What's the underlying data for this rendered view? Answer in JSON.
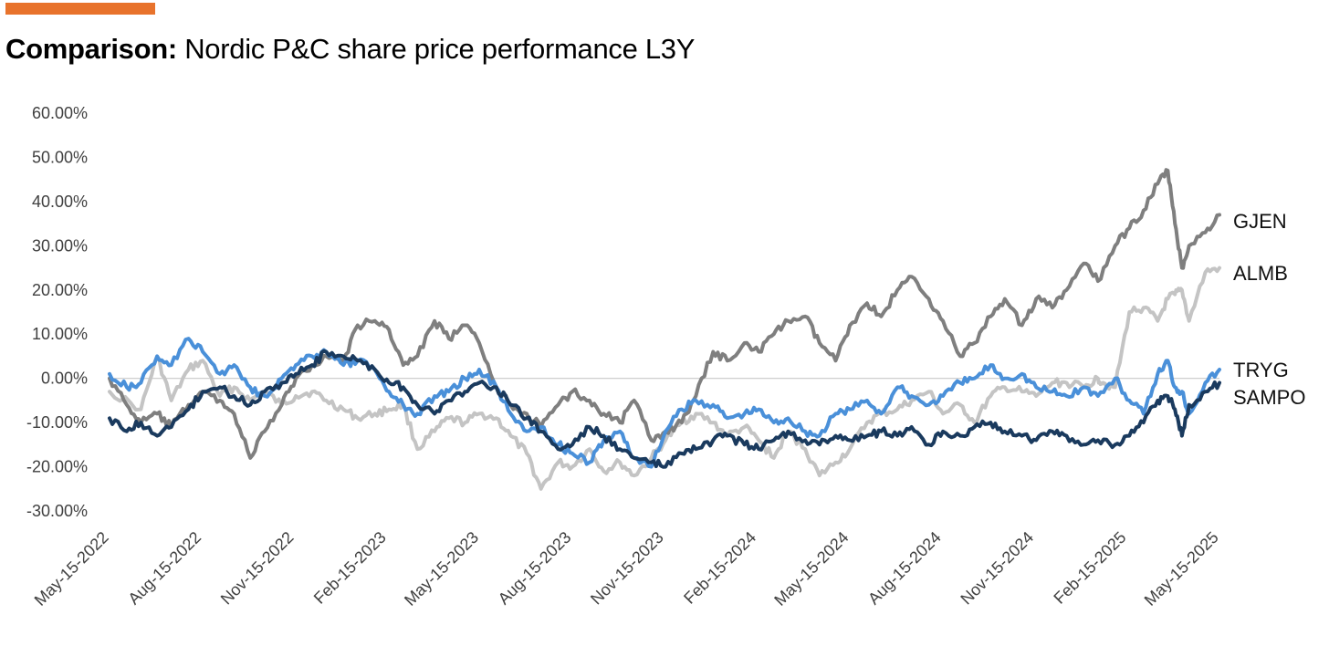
{
  "header": {
    "accent_color": "#E8732C",
    "title_bold": "Comparison:",
    "title_rest": " Nordic P&C share price performance L3Y"
  },
  "chart_data": {
    "type": "line",
    "title": "Comparison: Nordic P&C share price performance L3Y",
    "xlabel": "",
    "ylabel": "",
    "x_start": "2022-05-15",
    "x_end": "2025-05-15",
    "x_ticks": [
      "May-15-2022",
      "Aug-15-2022",
      "Nov-15-2022",
      "Feb-15-2023",
      "May-15-2023",
      "Aug-15-2023",
      "Nov-15-2023",
      "Feb-15-2024",
      "May-15-2024",
      "Aug-15-2024",
      "Nov-15-2024",
      "Feb-15-2025",
      "May-15-2025"
    ],
    "y_ticks": [
      "-30.00%",
      "-20.00%",
      "-10.00%",
      "0.00%",
      "10.00%",
      "20.00%",
      "30.00%",
      "40.00%",
      "50.00%",
      "60.00%"
    ],
    "ylim": [
      -30,
      60
    ],
    "y_unit": "%",
    "grid": false,
    "legend": "labels at line ends",
    "series": [
      {
        "name": "ALMB",
        "color": "#C4C4C4",
        "x": [
          "2022-05-15",
          "2022-06-15",
          "2022-07-01",
          "2022-07-15",
          "2022-08-01",
          "2022-08-15",
          "2022-09-01",
          "2022-09-15",
          "2022-10-01",
          "2022-10-15",
          "2022-11-01",
          "2022-11-15",
          "2022-12-01",
          "2022-12-15",
          "2023-01-01",
          "2023-01-15",
          "2023-02-01",
          "2023-02-15",
          "2023-03-01",
          "2023-03-15",
          "2023-04-01",
          "2023-04-15",
          "2023-05-01",
          "2023-05-15",
          "2023-06-01",
          "2023-06-15",
          "2023-07-01",
          "2023-07-15",
          "2023-08-01",
          "2023-08-15",
          "2023-09-01",
          "2023-09-15",
          "2023-10-01",
          "2023-10-15",
          "2023-11-01",
          "2023-11-15",
          "2023-12-01",
          "2023-12-15",
          "2024-01-01",
          "2024-01-15",
          "2024-02-01",
          "2024-02-15",
          "2024-03-01",
          "2024-03-15",
          "2024-04-01",
          "2024-04-15",
          "2024-05-01",
          "2024-05-15",
          "2024-06-01",
          "2024-06-15",
          "2024-07-01",
          "2024-07-15",
          "2024-08-01",
          "2024-08-15",
          "2024-09-01",
          "2024-09-15",
          "2024-10-01",
          "2024-10-15",
          "2024-11-01",
          "2024-11-15",
          "2024-12-01",
          "2024-12-15",
          "2025-01-01",
          "2025-01-15",
          "2025-01-20",
          "2025-02-01",
          "2025-02-15",
          "2025-03-01",
          "2025-03-15",
          "2025-03-25",
          "2025-04-01",
          "2025-04-08",
          "2025-04-15",
          "2025-05-01",
          "2025-05-15"
        ],
        "values": [
          -3,
          -7,
          5,
          -5,
          2,
          4,
          -4,
          -2,
          -5,
          -3,
          -6,
          -4,
          -3,
          -5,
          -7,
          -9,
          -8,
          -7,
          -6,
          -16,
          -12,
          -9,
          -10,
          -8,
          -9,
          -13,
          -17,
          -25,
          -19,
          -20,
          -16,
          -21,
          -19,
          -22,
          -18,
          -14,
          -10,
          -8,
          -10,
          -13,
          -11,
          -14,
          -18,
          -12,
          -16,
          -22,
          -19,
          -16,
          -10,
          -8,
          -7,
          -5,
          -3,
          -8,
          -6,
          -10,
          -4,
          -2,
          -3,
          -4,
          -1,
          -1,
          -2,
          0,
          -1,
          -2,
          15,
          16,
          13,
          18,
          19,
          20,
          13,
          24,
          25
        ]
      },
      {
        "name": "GJEN",
        "color": "#7F7F7F",
        "x": [
          "2022-05-15",
          "2022-06-01",
          "2022-06-15",
          "2022-07-01",
          "2022-07-15",
          "2022-08-01",
          "2022-08-15",
          "2022-09-01",
          "2022-09-15",
          "2022-10-01",
          "2022-10-15",
          "2022-11-01",
          "2022-11-15",
          "2022-12-01",
          "2022-12-15",
          "2023-01-01",
          "2023-01-15",
          "2023-02-01",
          "2023-02-15",
          "2023-03-01",
          "2023-03-15",
          "2023-04-01",
          "2023-04-15",
          "2023-05-01",
          "2023-05-15",
          "2023-06-01",
          "2023-06-15",
          "2023-07-01",
          "2023-07-15",
          "2023-08-01",
          "2023-08-15",
          "2023-09-01",
          "2023-09-15",
          "2023-10-01",
          "2023-10-15",
          "2023-11-01",
          "2023-11-15",
          "2023-12-01",
          "2023-12-15",
          "2024-01-01",
          "2024-01-15",
          "2024-02-01",
          "2024-02-15",
          "2024-03-01",
          "2024-03-15",
          "2024-04-01",
          "2024-04-15",
          "2024-05-01",
          "2024-05-15",
          "2024-06-01",
          "2024-06-15",
          "2024-07-01",
          "2024-07-15",
          "2024-08-01",
          "2024-08-15",
          "2024-09-01",
          "2024-09-15",
          "2024-10-01",
          "2024-10-15",
          "2024-11-01",
          "2024-11-15",
          "2024-12-01",
          "2024-12-15",
          "2025-01-01",
          "2025-01-15",
          "2025-02-01",
          "2025-02-15",
          "2025-03-01",
          "2025-03-15",
          "2025-03-25",
          "2025-04-01",
          "2025-04-08",
          "2025-04-15",
          "2025-05-01",
          "2025-05-15"
        ],
        "values": [
          0,
          -6,
          -10,
          -8,
          -11,
          -6,
          -3,
          -5,
          -8,
          -18,
          -12,
          -6,
          0,
          3,
          5,
          4,
          12,
          13,
          11,
          3,
          5,
          13,
          9,
          12,
          8,
          -2,
          -6,
          -8,
          -11,
          -6,
          -3,
          -5,
          -8,
          -10,
          -5,
          -14,
          -12,
          -10,
          -4,
          6,
          4,
          8,
          6,
          10,
          13,
          14,
          8,
          4,
          12,
          17,
          14,
          20,
          23,
          18,
          13,
          5,
          8,
          14,
          18,
          12,
          18,
          16,
          20,
          26,
          22,
          30,
          34,
          38,
          44,
          47,
          35,
          25,
          30,
          33,
          37
        ]
      },
      {
        "name": "TRYG",
        "color": "#4A90D9",
        "x": [
          "2022-05-15",
          "2022-06-01",
          "2022-06-15",
          "2022-07-01",
          "2022-07-15",
          "2022-08-01",
          "2022-08-15",
          "2022-09-01",
          "2022-09-15",
          "2022-10-01",
          "2022-10-15",
          "2022-11-01",
          "2022-11-15",
          "2022-12-01",
          "2022-12-15",
          "2023-01-01",
          "2023-01-15",
          "2023-02-01",
          "2023-02-15",
          "2023-03-01",
          "2023-03-15",
          "2023-04-01",
          "2023-04-15",
          "2023-05-01",
          "2023-05-15",
          "2023-06-01",
          "2023-06-15",
          "2023-07-01",
          "2023-07-15",
          "2023-08-01",
          "2023-08-15",
          "2023-09-01",
          "2023-09-15",
          "2023-10-01",
          "2023-10-15",
          "2023-11-01",
          "2023-11-15",
          "2023-12-01",
          "2023-12-15",
          "2024-01-01",
          "2024-01-15",
          "2024-02-01",
          "2024-02-15",
          "2024-03-01",
          "2024-03-15",
          "2024-04-01",
          "2024-04-15",
          "2024-05-01",
          "2024-05-15",
          "2024-06-01",
          "2024-06-15",
          "2024-07-01",
          "2024-07-15",
          "2024-08-01",
          "2024-08-15",
          "2024-09-01",
          "2024-09-15",
          "2024-10-01",
          "2024-10-15",
          "2024-11-01",
          "2024-11-15",
          "2024-12-01",
          "2024-12-15",
          "2025-01-01",
          "2025-01-15",
          "2025-02-01",
          "2025-02-15",
          "2025-03-01",
          "2025-03-15",
          "2025-03-25",
          "2025-04-01",
          "2025-04-08",
          "2025-04-15",
          "2025-05-01",
          "2025-05-15"
        ],
        "values": [
          1,
          -2,
          -1,
          5,
          3,
          9,
          6,
          1,
          3,
          -2,
          -4,
          0,
          3,
          5,
          6,
          3,
          4,
          2,
          -3,
          -6,
          -8,
          -4,
          -3,
          0,
          2,
          -2,
          -8,
          -12,
          -11,
          -15,
          -17,
          -19,
          -14,
          -12,
          -18,
          -20,
          -12,
          -7,
          -5,
          -6,
          -9,
          -8,
          -7,
          -10,
          -9,
          -12,
          -13,
          -8,
          -7,
          -5,
          -8,
          -2,
          -4,
          -6,
          -4,
          -1,
          0,
          3,
          0,
          1,
          -2,
          -3,
          -4,
          -2,
          -4,
          0,
          -5,
          -8,
          1,
          4,
          -2,
          -3,
          -8,
          -1,
          2
        ]
      },
      {
        "name": "SAMPO",
        "color": "#1A3A5E",
        "x": [
          "2022-05-15",
          "2022-06-01",
          "2022-06-15",
          "2022-07-01",
          "2022-07-15",
          "2022-08-01",
          "2022-08-15",
          "2022-09-01",
          "2022-09-15",
          "2022-10-01",
          "2022-10-15",
          "2022-11-01",
          "2022-11-15",
          "2022-12-01",
          "2022-12-15",
          "2023-01-01",
          "2023-01-15",
          "2023-02-01",
          "2023-02-15",
          "2023-03-01",
          "2023-03-15",
          "2023-04-01",
          "2023-04-15",
          "2023-05-01",
          "2023-05-15",
          "2023-06-01",
          "2023-06-15",
          "2023-07-01",
          "2023-07-15",
          "2023-08-01",
          "2023-08-15",
          "2023-09-01",
          "2023-09-15",
          "2023-10-01",
          "2023-10-15",
          "2023-11-01",
          "2023-11-15",
          "2023-12-01",
          "2023-12-15",
          "2024-01-01",
          "2024-01-15",
          "2024-02-01",
          "2024-02-15",
          "2024-03-01",
          "2024-03-15",
          "2024-04-01",
          "2024-04-15",
          "2024-05-01",
          "2024-05-15",
          "2024-06-01",
          "2024-06-15",
          "2024-07-01",
          "2024-07-15",
          "2024-08-01",
          "2024-08-15",
          "2024-09-01",
          "2024-09-15",
          "2024-10-01",
          "2024-10-15",
          "2024-11-01",
          "2024-11-15",
          "2024-12-01",
          "2024-12-15",
          "2025-01-01",
          "2025-01-15",
          "2025-02-01",
          "2025-02-15",
          "2025-03-01",
          "2025-03-15",
          "2025-03-25",
          "2025-04-01",
          "2025-04-08",
          "2025-04-15",
          "2025-05-01",
          "2025-05-15"
        ],
        "values": [
          -9,
          -12,
          -10,
          -13,
          -11,
          -7,
          -3,
          -2,
          -4,
          -6,
          -3,
          -1,
          1,
          3,
          6,
          5,
          4,
          2,
          -1,
          -2,
          -6,
          -8,
          -5,
          -3,
          -1,
          -2,
          -6,
          -9,
          -12,
          -16,
          -15,
          -11,
          -13,
          -16,
          -18,
          -19,
          -20,
          -17,
          -16,
          -14,
          -13,
          -15,
          -16,
          -14,
          -12,
          -14,
          -15,
          -13,
          -14,
          -13,
          -12,
          -13,
          -11,
          -15,
          -12,
          -13,
          -11,
          -10,
          -12,
          -13,
          -14,
          -12,
          -13,
          -15,
          -14,
          -15,
          -13,
          -10,
          -5,
          -4,
          -7,
          -13,
          -6,
          -3,
          -1
        ]
      }
    ]
  }
}
